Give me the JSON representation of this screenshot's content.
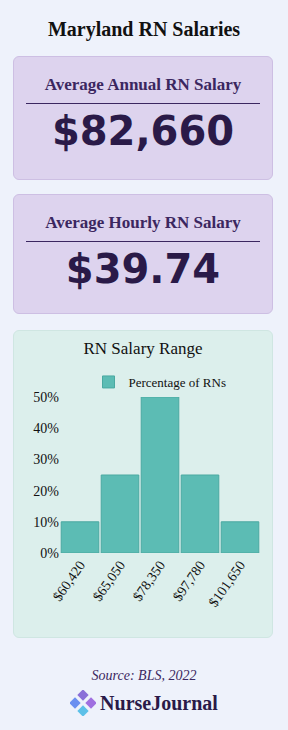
{
  "header": {
    "title": "Maryland RN Salaries"
  },
  "cards": [
    {
      "label": "Average Annual RN Salary",
      "value": "$82,660"
    },
    {
      "label": "Average Hourly RN Salary",
      "value": "$39.74"
    }
  ],
  "chart_data": {
    "type": "bar",
    "title": "RN Salary Range",
    "categories": [
      "$60,420",
      "$65,050",
      "$78,350",
      "$97,780",
      "$101,650"
    ],
    "series": [
      {
        "name": "Percentage of RNs",
        "color": "#5cbcb4",
        "values": [
          10,
          25,
          50,
          25,
          10
        ]
      }
    ],
    "ylim": [
      0,
      50
    ],
    "yticks": [
      {
        "value": 0,
        "label": "0%"
      },
      {
        "value": 10,
        "label": "10%"
      },
      {
        "value": 20,
        "label": "20%"
      },
      {
        "value": 30,
        "label": "30%"
      },
      {
        "value": 40,
        "label": "40%"
      },
      {
        "value": 50,
        "label": "50%"
      }
    ],
    "grid": false,
    "legend": "top"
  },
  "footer": {
    "source": "Source: BLS, 2022",
    "brand": "NurseJournal"
  }
}
